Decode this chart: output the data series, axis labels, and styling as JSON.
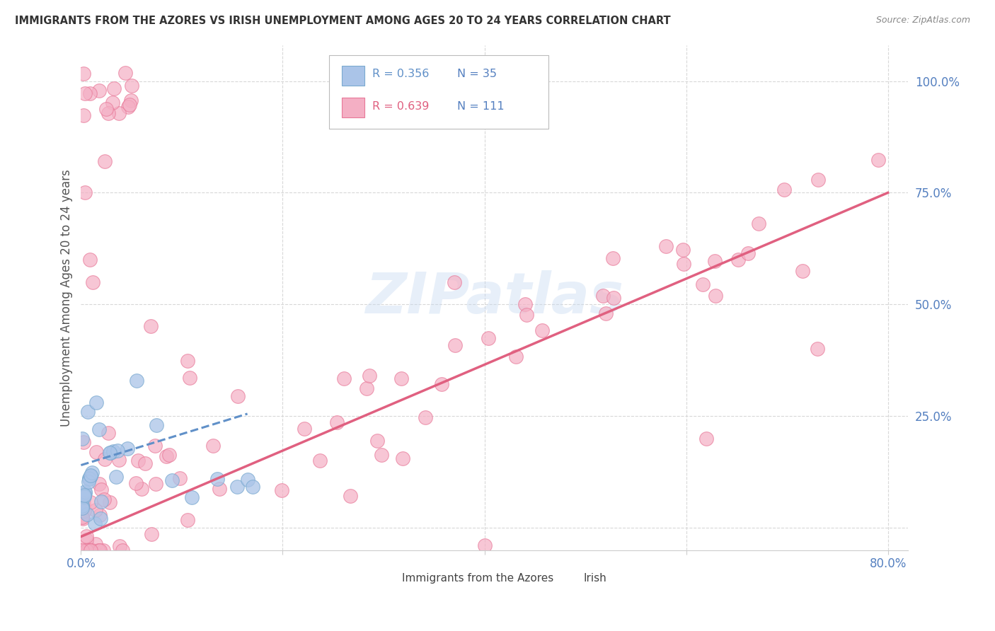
{
  "title": "IMMIGRANTS FROM THE AZORES VS IRISH UNEMPLOYMENT AMONG AGES 20 TO 24 YEARS CORRELATION CHART",
  "source": "Source: ZipAtlas.com",
  "ylabel": "Unemployment Among Ages 20 to 24 years",
  "xlim": [
    0.0,
    0.82
  ],
  "ylim": [
    -0.05,
    1.08
  ],
  "xtick_positions": [
    0.0,
    0.2,
    0.4,
    0.6,
    0.8
  ],
  "xticklabels": [
    "0.0%",
    "",
    "",
    "",
    "80.0%"
  ],
  "yticks_right": [
    0.25,
    0.5,
    0.75,
    1.0
  ],
  "ytick_right_labels": [
    "25.0%",
    "50.0%",
    "75.0%",
    "100.0%"
  ],
  "legend_blue_r": "R = 0.356",
  "legend_blue_n": "N = 35",
  "legend_pink_r": "R = 0.639",
  "legend_pink_n": "N = 111",
  "legend_label_blue": "Immigrants from the Azores",
  "legend_label_pink": "Irish",
  "watermark": "ZIPatlas",
  "color_blue_fill": "#aac4e8",
  "color_blue_edge": "#7aaad0",
  "color_pink_fill": "#f4afc4",
  "color_pink_edge": "#e87898",
  "color_trend_blue": "#6090c8",
  "color_trend_pink": "#e06080",
  "color_axis_text": "#5580c0",
  "color_title": "#333333",
  "color_source": "#888888",
  "color_grid": "#d8d8d8",
  "color_watermark": "#c5d8f0",
  "watermark_alpha": 0.4,
  "blue_trend_x0": 0.0,
  "blue_trend_y0": 0.14,
  "blue_trend_x1": 0.165,
  "blue_trend_y1": 0.255,
  "pink_trend_x0": 0.0,
  "pink_trend_y0": -0.02,
  "pink_trend_x1": 0.8,
  "pink_trend_y1": 0.75
}
